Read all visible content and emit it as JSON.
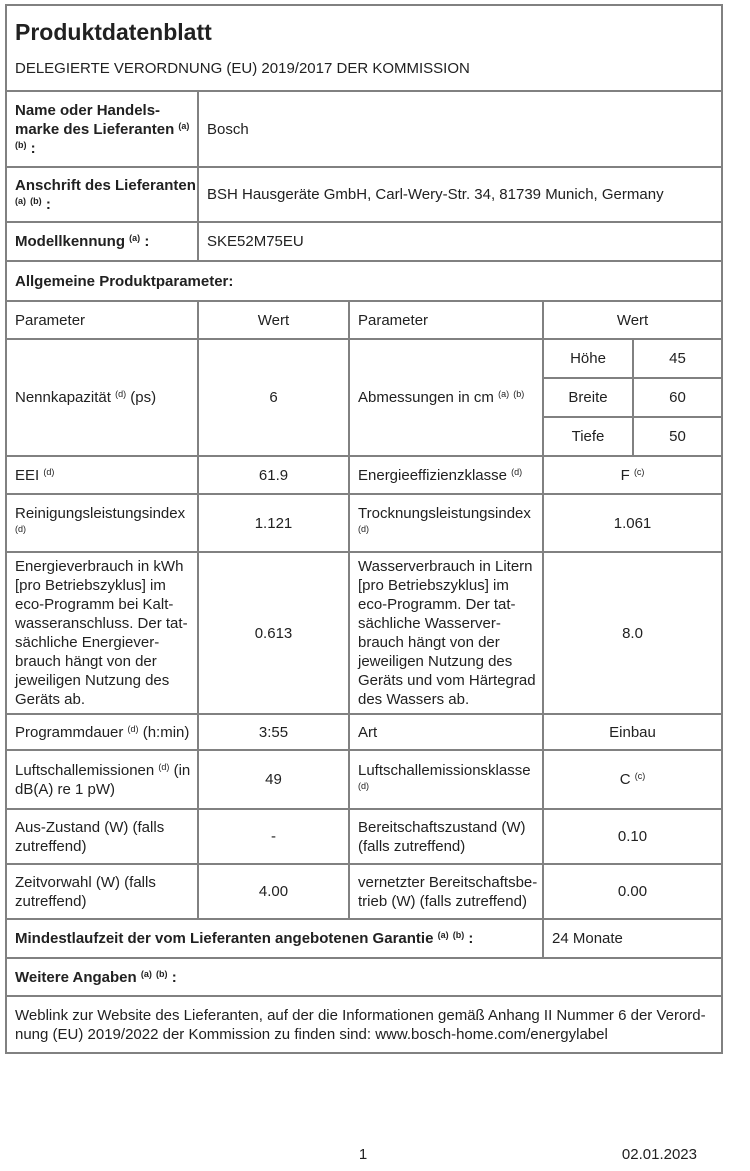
{
  "document": {
    "title": "Produktdatenblatt",
    "regulation": "DELEGIERTE VERORDNUNG (EU) 2019/2017 DER KOMMISSION"
  },
  "supplier": {
    "name": {
      "label": "Name oder Handels-\nmarke des Lieferanten [[a]]\n[[b]] :",
      "value": "Bosch"
    },
    "address": {
      "label": "Anschrift des Lieferanten\n[[a]] [[b]] :",
      "value": "BSH Hausgeräte GmbH, Carl-Wery-Str. 34, 81739 Munich, Germany"
    },
    "model": {
      "label": "Modellkennung [[a]] :",
      "value": "SKE52M75EU"
    }
  },
  "general_heading": "Allgemeine Produktparameter:",
  "table_headers": {
    "param_left": "Parameter",
    "wert_left": "Wert",
    "param_right": "Parameter",
    "wert_right": "Wert"
  },
  "params": {
    "capacity": {
      "label": "Nennkapazität [[d]] (ps)",
      "value": "6"
    },
    "dimensions": {
      "label": "Abmessungen in cm [[a]] [[b]]",
      "rows": [
        {
          "name": "Höhe",
          "value": "45"
        },
        {
          "name": "Breite",
          "value": "60"
        },
        {
          "name": "Tiefe",
          "value": "50"
        }
      ]
    },
    "eei": {
      "label": "EEI [[d]]",
      "value": "61.9"
    },
    "energy_class": {
      "label": "Energieeffizienzklasse [[d]]",
      "value": "F [[c]]"
    },
    "cleaning_index": {
      "label": "Reinigungsleistungsindex\n[[d]]",
      "value": "1.121"
    },
    "drying_index": {
      "label": "Trocknungsleistungsindex\n[[d]]",
      "value": "1.061"
    },
    "energy_consumption": {
      "label": "Energieverbrauch in kWh\n[pro Betriebszyklus] im\neco-Programm bei Kalt-\nwasseranschluss. Der tat-\nsächliche Energiever-\nbrauch hängt von der\njeweiligen Nutzung des\nGeräts ab.",
      "value": "0.613"
    },
    "water_consumption": {
      "label": "Wasserverbrauch in Litern\n[pro Betriebszyklus] im\neco-Programm. Der tat-\nsächliche Wasserver-\nbrauch hängt von der\njeweiligen Nutzung des\nGeräts und vom Härtegrad\ndes Wassers ab.",
      "value": "8.0"
    },
    "duration": {
      "label": "Programmdauer [[d]] (h:min)",
      "value": "3:55"
    },
    "type": {
      "label": "Art",
      "value": "Einbau"
    },
    "noise": {
      "label": "Luftschallemissionen [[d]] (in\ndB(A) re 1 pW)",
      "value": "49"
    },
    "noise_class": {
      "label": "Luftschallemissionsklasse\n[[d]]",
      "value": "C [[c]]"
    },
    "off_mode": {
      "label": "Aus-Zustand (W) (falls\nzutreffend)",
      "value": "-"
    },
    "standby": {
      "label": "Bereitschaftszustand (W)\n(falls zutreffend)",
      "value": "0.10"
    },
    "delay_start": {
      "label": "Zeitvorwahl (W) (falls\nzutreffend)",
      "value": "4.00"
    },
    "networked_standby": {
      "label": "vernetzter Bereitschaftsbe-\ntrieb (W) (falls zutreffend)",
      "value": "0.00"
    }
  },
  "guarantee": {
    "label": "Mindestlaufzeit der vom Lieferanten angebotenen Garantie [[a]] [[b]] :",
    "value": "24 Monate"
  },
  "additional": {
    "label": "Weitere Angaben [[a]] [[b]] :"
  },
  "weblink": "Weblink zur Website des Lieferanten, auf der die Informationen gemäß Anhang II Nummer 6 der Verord-\nnung (EU) 2019/2022 der Kommission zu finden sind: www.bosch-home.com/energylabel",
  "footer": {
    "page_number": "1",
    "date": "02.01.2023"
  }
}
